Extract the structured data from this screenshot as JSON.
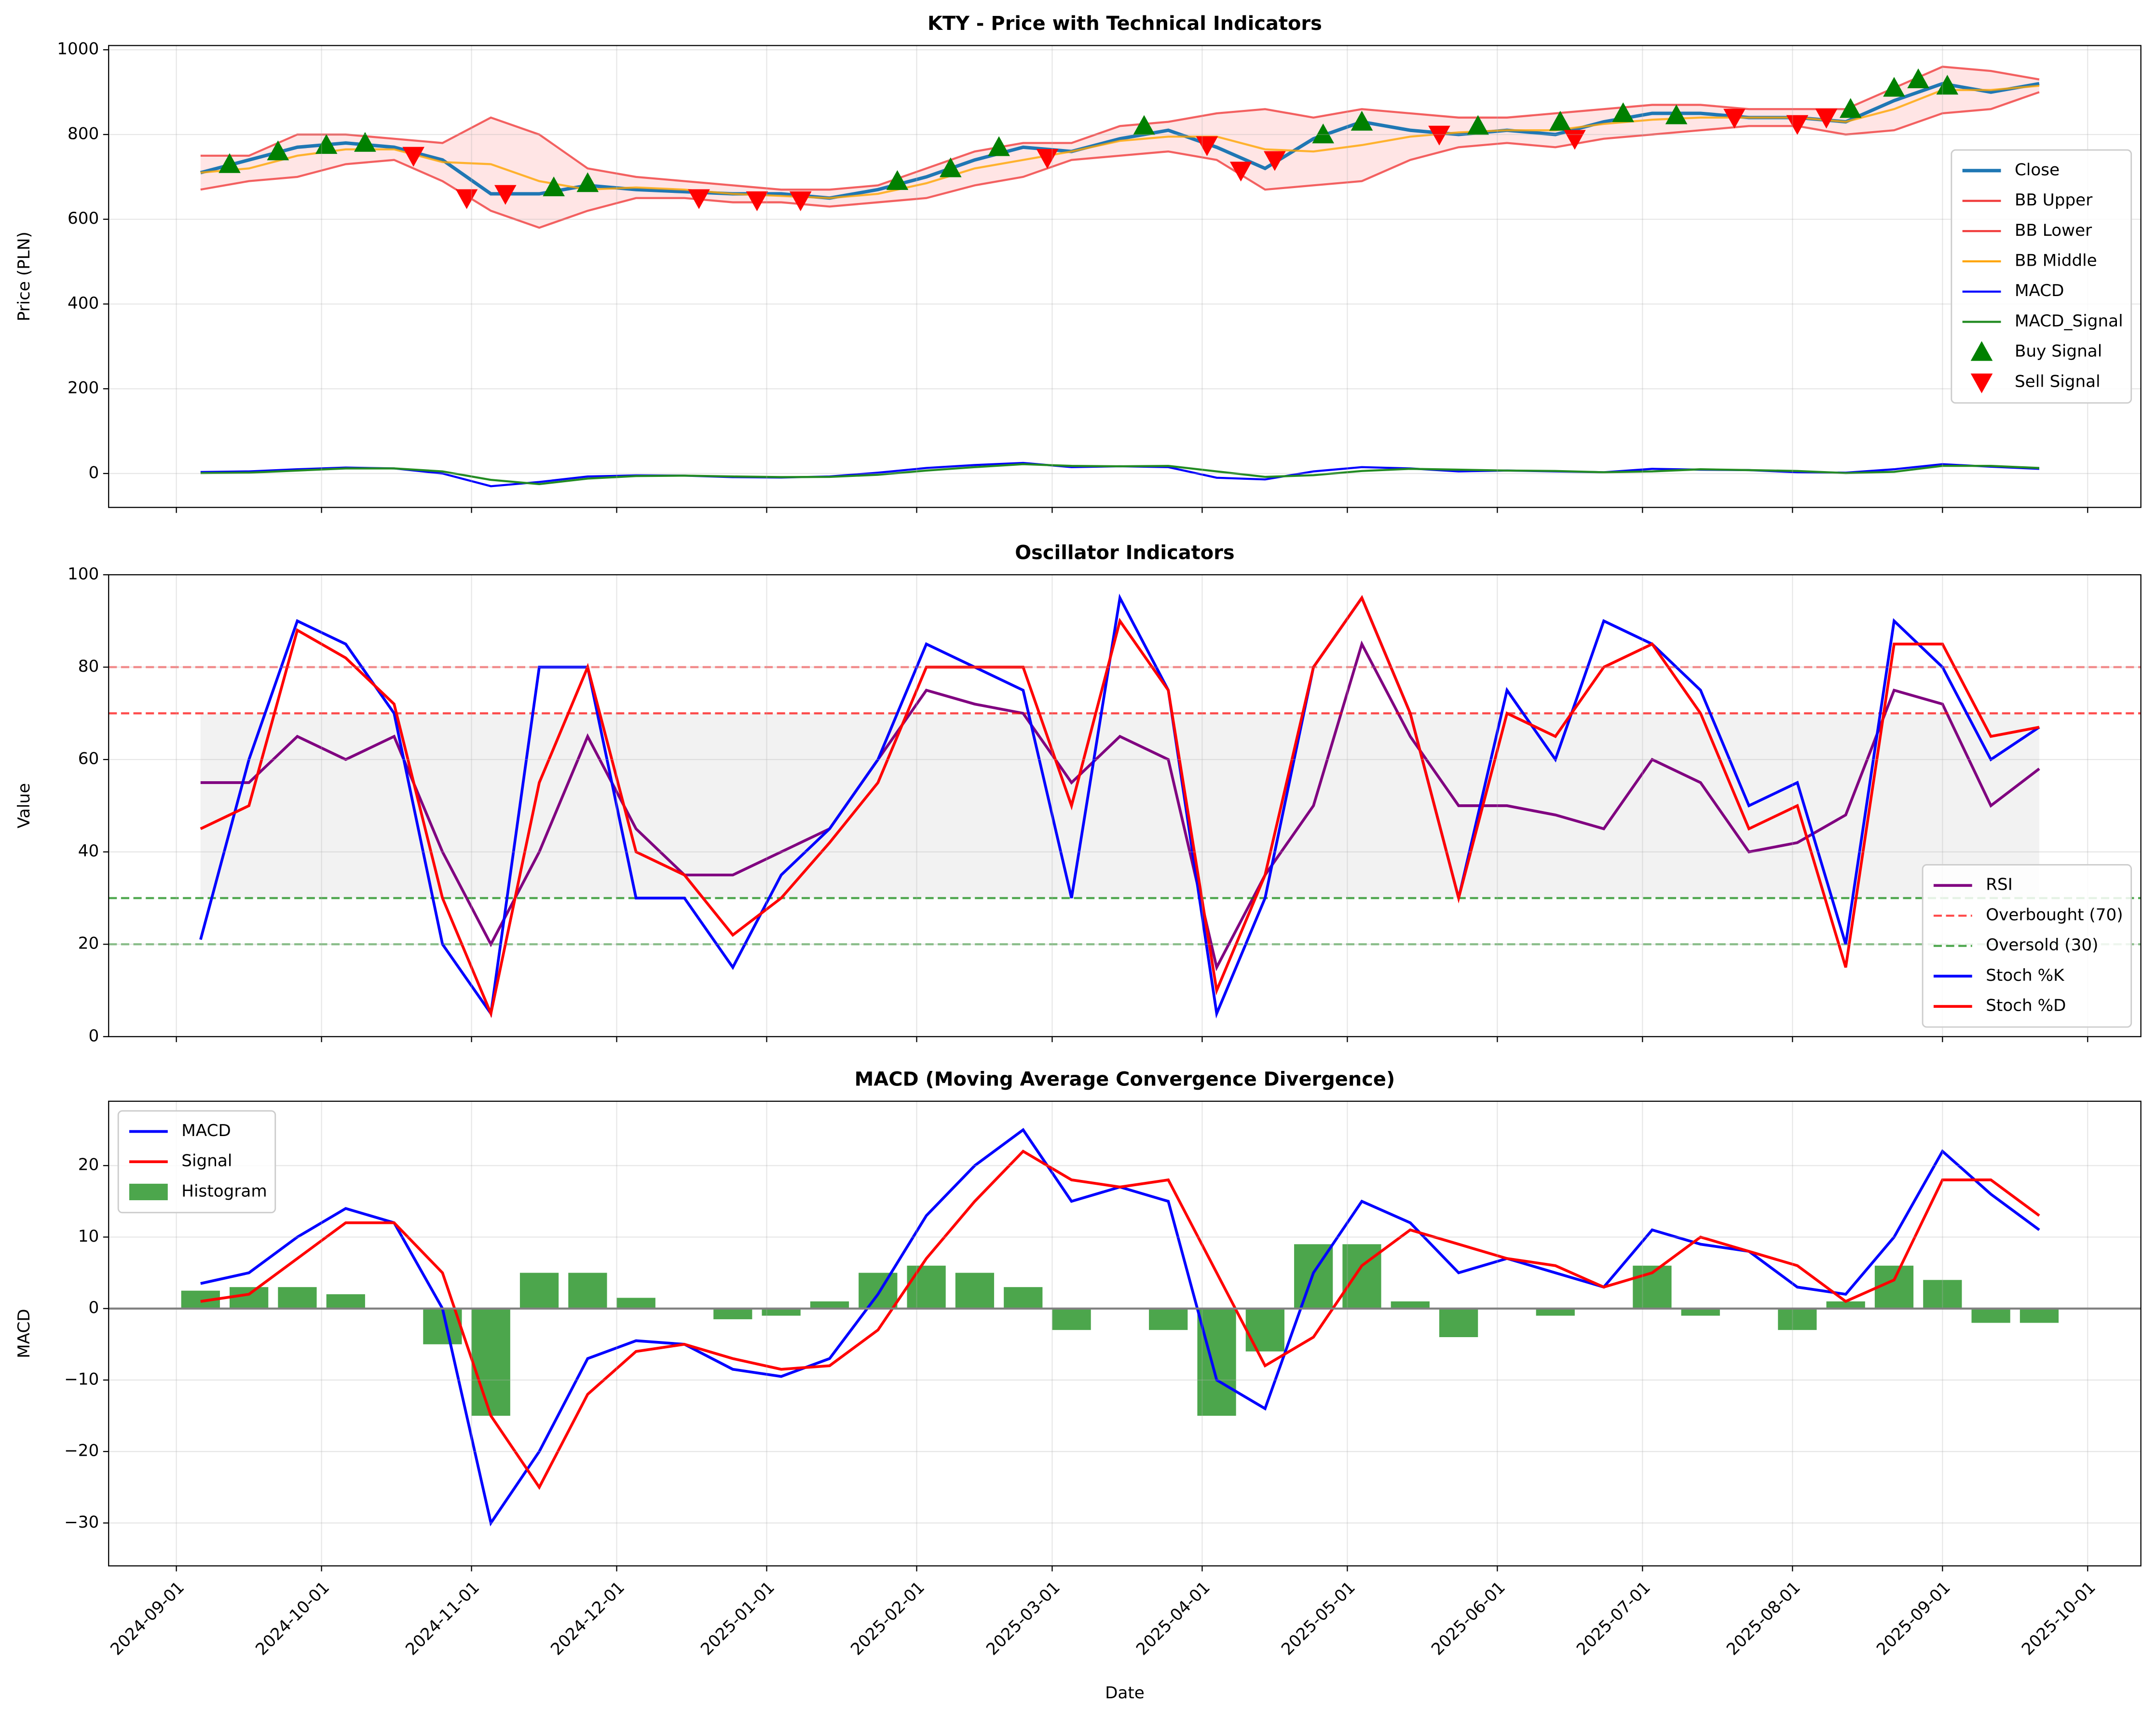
{
  "chart_data": [
    {
      "type": "line",
      "title": "KTY - Price with Technical Indicators",
      "ylabel": "Price (PLN)",
      "x": [
        "2024-09-06",
        "2024-09-16",
        "2024-09-26",
        "2024-10-06",
        "2024-10-16",
        "2024-10-26",
        "2024-11-05",
        "2024-11-15",
        "2024-11-25",
        "2024-12-05",
        "2024-12-15",
        "2024-12-25",
        "2025-01-04",
        "2025-01-14",
        "2025-01-24",
        "2025-02-03",
        "2025-02-13",
        "2025-02-23",
        "2025-03-05",
        "2025-03-15",
        "2025-03-25",
        "2025-04-04",
        "2025-04-14",
        "2025-04-24",
        "2025-05-04",
        "2025-05-14",
        "2025-05-24",
        "2025-06-03",
        "2025-06-13",
        "2025-06-23",
        "2025-07-03",
        "2025-07-13",
        "2025-07-23",
        "2025-08-02",
        "2025-08-12",
        "2025-08-22",
        "2025-09-01",
        "2025-09-11",
        "2025-09-21"
      ],
      "series": [
        {
          "name": "Close",
          "kind": "line",
          "color": "#1f77b4",
          "width": 2.5,
          "values": [
            710,
            740,
            770,
            780,
            770,
            740,
            660,
            660,
            680,
            670,
            665,
            660,
            660,
            650,
            670,
            700,
            740,
            770,
            760,
            790,
            810,
            770,
            720,
            790,
            830,
            810,
            800,
            810,
            800,
            830,
            850,
            850,
            840,
            840,
            830,
            880,
            920,
            900,
            920
          ]
        },
        {
          "name": "BB Upper",
          "kind": "line",
          "color": "#f03c3c",
          "width": 1.5,
          "values": [
            750,
            750,
            800,
            800,
            790,
            780,
            840,
            800,
            720,
            700,
            690,
            680,
            670,
            670,
            680,
            720,
            760,
            780,
            780,
            820,
            830,
            850,
            860,
            840,
            860,
            850,
            840,
            840,
            850,
            860,
            870,
            870,
            860,
            860,
            860,
            910,
            960,
            950,
            930
          ]
        },
        {
          "name": "BB Lower",
          "kind": "line",
          "color": "#f03c3c",
          "width": 1.5,
          "values": [
            670,
            690,
            700,
            730,
            740,
            690,
            620,
            580,
            620,
            650,
            650,
            640,
            640,
            630,
            640,
            650,
            680,
            700,
            740,
            750,
            760,
            740,
            670,
            680,
            690,
            740,
            770,
            780,
            770,
            790,
            800,
            810,
            820,
            820,
            800,
            810,
            850,
            860,
            900
          ]
        },
        {
          "name": "BB Middle",
          "kind": "line",
          "color": "#ffa500",
          "width": 1.5,
          "values": [
            710,
            720,
            750,
            765,
            765,
            735,
            730,
            690,
            670,
            675,
            670,
            660,
            655,
            650,
            660,
            685,
            720,
            740,
            760,
            785,
            795,
            795,
            765,
            760,
            775,
            795,
            805,
            810,
            810,
            825,
            835,
            840,
            840,
            840,
            830,
            860,
            905,
            905,
            915
          ]
        },
        {
          "name": "MACD",
          "kind": "line",
          "color": "#0000ff",
          "width": 1.5,
          "values": [
            3.5,
            5,
            10,
            14,
            12,
            0,
            -30,
            -20,
            -7,
            -4.5,
            -5,
            -8.5,
            -9.5,
            -7,
            2,
            13,
            20,
            25,
            15,
            17,
            15,
            -10,
            -14,
            5,
            15,
            12,
            5,
            7,
            5,
            3,
            11,
            9,
            8,
            3,
            2,
            10,
            22,
            16,
            11
          ]
        },
        {
          "name": "MACD_Signal",
          "kind": "line",
          "color": "#228b22",
          "width": 1.5,
          "values": [
            1,
            2,
            7,
            12,
            12,
            5,
            -15,
            -25,
            -12,
            -6,
            -5,
            -7,
            -8.5,
            -8,
            -3,
            7,
            15,
            22,
            18,
            17,
            18,
            5,
            -8,
            -4,
            6,
            11,
            9,
            7,
            6,
            3,
            5,
            10,
            8,
            6,
            1,
            4,
            18,
            18,
            13
          ]
        },
        {
          "name": "Buy Signal",
          "kind": "scatter",
          "marker": "^",
          "color": "#008000",
          "x": [
            "2024-09-12",
            "2024-09-22",
            "2024-10-02",
            "2024-10-10",
            "2024-11-18",
            "2024-11-25",
            "2025-01-28",
            "2025-02-08",
            "2025-02-18",
            "2025-03-20",
            "2025-04-26",
            "2025-05-04",
            "2025-05-28",
            "2025-06-14",
            "2025-06-27",
            "2025-07-08",
            "2025-08-13",
            "2025-08-22",
            "2025-08-27",
            "2025-09-02"
          ],
          "values": [
            730,
            760,
            775,
            780,
            675,
            685,
            690,
            720,
            770,
            820,
            800,
            830,
            820,
            830,
            850,
            845,
            860,
            910,
            930,
            915
          ]
        },
        {
          "name": "Sell Signal",
          "kind": "scatter",
          "marker": "v",
          "color": "#ff0000",
          "x": [
            "2024-10-20",
            "2024-10-31",
            "2024-11-08",
            "2024-12-18",
            "2024-12-30",
            "2025-01-08",
            "2025-02-28",
            "2025-04-02",
            "2025-04-09",
            "2025-04-16",
            "2025-05-20",
            "2025-06-17",
            "2025-07-20",
            "2025-08-02",
            "2025-08-08"
          ],
          "values": [
            750,
            650,
            660,
            650,
            645,
            645,
            745,
            775,
            715,
            740,
            800,
            790,
            840,
            825,
            840
          ]
        }
      ],
      "xlim": [
        "2024-08-18",
        "2025-10-12"
      ],
      "xticks": [
        "2024-09-01",
        "2024-10-01",
        "2024-11-01",
        "2024-12-01",
        "2025-01-01",
        "2025-02-01",
        "2025-03-01",
        "2025-04-01",
        "2025-05-01",
        "2025-06-01",
        "2025-07-01",
        "2025-08-01",
        "2025-09-01",
        "2025-10-01"
      ],
      "ylim": [
        -80,
        1010
      ],
      "yticks": [
        0,
        200,
        400,
        600,
        800,
        1000
      ],
      "grid": true,
      "legend": "center right"
    },
    {
      "type": "line",
      "title": "Oscillator Indicators",
      "ylabel": "Value",
      "x": [
        "2024-09-06",
        "2024-09-16",
        "2024-09-26",
        "2024-10-06",
        "2024-10-16",
        "2024-10-26",
        "2024-11-05",
        "2024-11-15",
        "2024-11-25",
        "2024-12-05",
        "2024-12-15",
        "2024-12-25",
        "2025-01-04",
        "2025-01-14",
        "2025-01-24",
        "2025-02-03",
        "2025-02-13",
        "2025-02-23",
        "2025-03-05",
        "2025-03-15",
        "2025-03-25",
        "2025-04-04",
        "2025-04-14",
        "2025-04-24",
        "2025-05-04",
        "2025-05-14",
        "2025-05-24",
        "2025-06-03",
        "2025-06-13",
        "2025-06-23",
        "2025-07-03",
        "2025-07-13",
        "2025-07-23",
        "2025-08-02",
        "2025-08-12",
        "2025-08-22",
        "2025-09-01",
        "2025-09-11",
        "2025-09-21"
      ],
      "series": [
        {
          "name": "RSI",
          "kind": "line",
          "color": "#800080",
          "width": 2,
          "values": [
            55,
            55,
            65,
            60,
            65,
            40,
            20,
            40,
            65,
            45,
            35,
            35,
            40,
            45,
            60,
            75,
            72,
            70,
            55,
            65,
            60,
            15,
            35,
            50,
            85,
            65,
            50,
            50,
            48,
            45,
            60,
            55,
            40,
            42,
            48,
            75,
            72,
            50,
            58
          ]
        },
        {
          "name": "Overbought (70)",
          "kind": "hline",
          "color": "#ff0000",
          "value": 70
        },
        {
          "name": "Oversold (30)",
          "kind": "hline",
          "color": "#008000",
          "value": 30
        },
        {
          "name": "Stoch %K",
          "kind": "line",
          "color": "#0000ff",
          "width": 2,
          "values": [
            21,
            60,
            90,
            85,
            70,
            20,
            5,
            80,
            80,
            30,
            30,
            15,
            35,
            45,
            60,
            85,
            80,
            75,
            30,
            95,
            75,
            5,
            30,
            80,
            95,
            70,
            30,
            75,
            60,
            90,
            85,
            75,
            50,
            55,
            20,
            90,
            80,
            60,
            67
          ]
        },
        {
          "name": "Stoch %D",
          "kind": "line",
          "color": "#ff0000",
          "width": 2,
          "values": [
            45,
            50,
            88,
            82,
            72,
            30,
            5,
            55,
            80,
            40,
            35,
            22,
            30,
            42,
            55,
            80,
            80,
            80,
            50,
            90,
            75,
            10,
            35,
            80,
            95,
            70,
            30,
            70,
            65,
            80,
            85,
            70,
            45,
            50,
            15,
            85,
            85,
            65,
            67
          ]
        }
      ],
      "hlines": [
        {
          "value": 80,
          "color": "#ff0000"
        },
        {
          "value": 20,
          "color": "#008000"
        }
      ],
      "xlim": [
        "2024-08-18",
        "2025-10-12"
      ],
      "xticks": [
        "2024-09-01",
        "2024-10-01",
        "2024-11-01",
        "2024-12-01",
        "2025-01-01",
        "2025-02-01",
        "2025-03-01",
        "2025-04-01",
        "2025-05-01",
        "2025-06-01",
        "2025-07-01",
        "2025-08-01",
        "2025-09-01",
        "2025-10-01"
      ],
      "ylim": [
        0,
        100
      ],
      "yticks": [
        0,
        20,
        40,
        60,
        80,
        100
      ],
      "grid": true,
      "legend": "lower right"
    },
    {
      "type": "line",
      "title": "MACD (Moving Average Convergence Divergence)",
      "ylabel": "MACD",
      "xlabel": "Date",
      "x": [
        "2024-09-06",
        "2024-09-16",
        "2024-09-26",
        "2024-10-06",
        "2024-10-16",
        "2024-10-26",
        "2024-11-05",
        "2024-11-15",
        "2024-11-25",
        "2024-12-05",
        "2024-12-15",
        "2024-12-25",
        "2025-01-04",
        "2025-01-14",
        "2025-01-24",
        "2025-02-03",
        "2025-02-13",
        "2025-02-23",
        "2025-03-05",
        "2025-03-15",
        "2025-03-25",
        "2025-04-04",
        "2025-04-14",
        "2025-04-24",
        "2025-05-04",
        "2025-05-14",
        "2025-05-24",
        "2025-06-03",
        "2025-06-13",
        "2025-06-23",
        "2025-07-03",
        "2025-07-13",
        "2025-07-23",
        "2025-08-02",
        "2025-08-12",
        "2025-08-22",
        "2025-09-01",
        "2025-09-11",
        "2025-09-21"
      ],
      "series": [
        {
          "name": "MACD",
          "kind": "line",
          "color": "#0000ff",
          "width": 2,
          "values": [
            3.5,
            5,
            10,
            14,
            12,
            0,
            -30,
            -20,
            -7,
            -4.5,
            -5,
            -8.5,
            -9.5,
            -7,
            2,
            13,
            20,
            25,
            15,
            17,
            15,
            -10,
            -14,
            5,
            15,
            12,
            5,
            7,
            5,
            3,
            11,
            9,
            8,
            3,
            2,
            10,
            22,
            16,
            11
          ]
        },
        {
          "name": "Signal",
          "kind": "line",
          "color": "#ff0000",
          "width": 2,
          "values": [
            1,
            2,
            7,
            12,
            12,
            5,
            -15,
            -25,
            -12,
            -6,
            -5,
            -7,
            -8.5,
            -8,
            -3,
            7,
            15,
            22,
            18,
            17,
            18,
            5,
            -8,
            -4,
            6,
            11,
            9,
            7,
            6,
            3,
            5,
            10,
            8,
            6,
            1,
            4,
            18,
            18,
            13
          ]
        },
        {
          "name": "Histogram",
          "kind": "bar",
          "color": "#4ca64c",
          "values": [
            2.5,
            3,
            3,
            2,
            0,
            -5,
            -15,
            5,
            5,
            1.5,
            0,
            -1.5,
            -1,
            1,
            5,
            6,
            5,
            3,
            -3,
            0,
            -3,
            -15,
            -6,
            9,
            9,
            1,
            -4,
            0,
            -1,
            0,
            6,
            -1,
            0,
            -3,
            1,
            6,
            4,
            -2,
            -2
          ]
        }
      ],
      "xlim": [
        "2024-08-18",
        "2025-10-12"
      ],
      "xticks": [
        "2024-09-01",
        "2024-10-01",
        "2024-11-01",
        "2024-12-01",
        "2025-01-01",
        "2025-02-01",
        "2025-03-01",
        "2025-04-01",
        "2025-05-01",
        "2025-06-01",
        "2025-07-01",
        "2025-08-01",
        "2025-09-01",
        "2025-10-01"
      ],
      "ylim": [
        -36,
        29
      ],
      "yticks": [
        {
          "value": -30,
          "label": "−30"
        },
        {
          "value": -20,
          "label": "−20"
        },
        {
          "value": -10,
          "label": "−10"
        },
        0,
        10,
        20
      ],
      "grid": true,
      "legend": "upper left"
    }
  ]
}
